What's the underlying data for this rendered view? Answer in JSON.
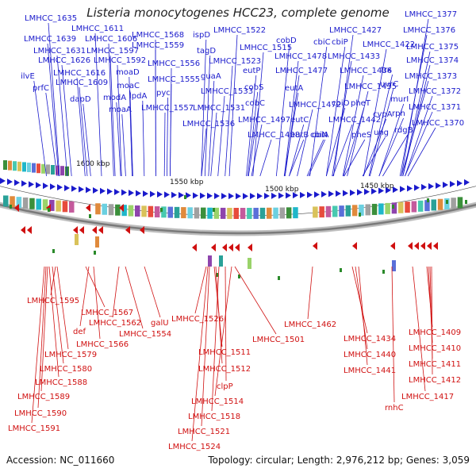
{
  "title": "Listeria monocytogenes HCC23, complete genome",
  "footer": {
    "accession": "Accession: NC_011660",
    "stats": "Topology: circular; Length: 2,976,212 bp; Genes: 3,059"
  },
  "colors": {
    "forward": "#1a1acc",
    "reverse": "#d01010",
    "ring": "#888888",
    "marker": "#2a8a2a"
  },
  "scale_ticks": [
    "1600 kbp",
    "1550 kbp",
    "1500 kbp",
    "1450 kbp"
  ],
  "forward_labels": [
    "LMHCC_1635",
    "LMHCC_1611",
    "LMHCC_1639",
    "LMHCC_1606",
    "LMHCC_1568",
    "ispD",
    "LMHCC_1522",
    "LMHCC_1631",
    "LMHCC_1597",
    "LMHCC_1559",
    "tagD",
    "LMHCC_1626",
    "LMHCC_1592",
    "LMHCC_1556",
    "LMHCC_1523",
    "LMHCC_1515",
    "cobD",
    "cbiC",
    "cbiP",
    "LMHCC_1427",
    "LMHCC_1422",
    "LMHCC_1478",
    "LMHCC_1433",
    "moaD",
    "ilvE",
    "LMHCC_1616",
    "LMHCC_1555",
    "guaA",
    "eutP",
    "eutA",
    "LMHCC_1477",
    "trx",
    "prfC",
    "moaC",
    "LMHCC_1609",
    "pyc",
    "LMHCC_1533",
    "cobS",
    "LMHCC_1436",
    "LMHCC_1435",
    "uvrC",
    "dapD",
    "lpdA",
    "modA",
    "cbiO",
    "pheT",
    "murI",
    "cobC",
    "LMHCC_1472",
    "moaA",
    "LMHCC_1557",
    "LMHCC_1531",
    "rph",
    "LMHCC_1497",
    "cvpA",
    "LMHCC_1442",
    "eutC",
    "LMHCC_1536",
    "rdgB",
    "cbiN",
    "pheS",
    "LMHCC_1498",
    "eutB",
    "cbiA",
    "ung",
    "LMHCC_1377",
    "LMHCC_1376",
    "LMHCC_1375",
    "LMHCC_1374",
    "LMHCC_1373",
    "LMHCC_1372",
    "LMHCC_1371",
    "LMHCC_1370"
  ],
  "reverse_labels": [
    "LMHCC_1595",
    "LMHCC_1567",
    "def",
    "LMHCC_1562",
    "galU",
    "LMHCC_1526",
    "LMHCC_1501",
    "LMHCC_1462",
    "LMHCC_1554",
    "LMHCC_1579",
    "LMHCC_1566",
    "LMHCC_1434",
    "LMHCC_1440",
    "LMHCC_1511",
    "LMHCC_1580",
    "LMHCC_1512",
    "LMHCC_1441",
    "LMHCC_1409",
    "LMHCC_1410",
    "LMHCC_1411",
    "LMHCC_1588",
    "clpP",
    "LMHCC_1412",
    "LMHCC_1589",
    "LMHCC_1514",
    "LMHCC_1417",
    "LMHCC_1590",
    "LMHCC_1518",
    "rnhC",
    "LMHCC_1591",
    "LMHCC_1521",
    "LMHCC_1524"
  ]
}
